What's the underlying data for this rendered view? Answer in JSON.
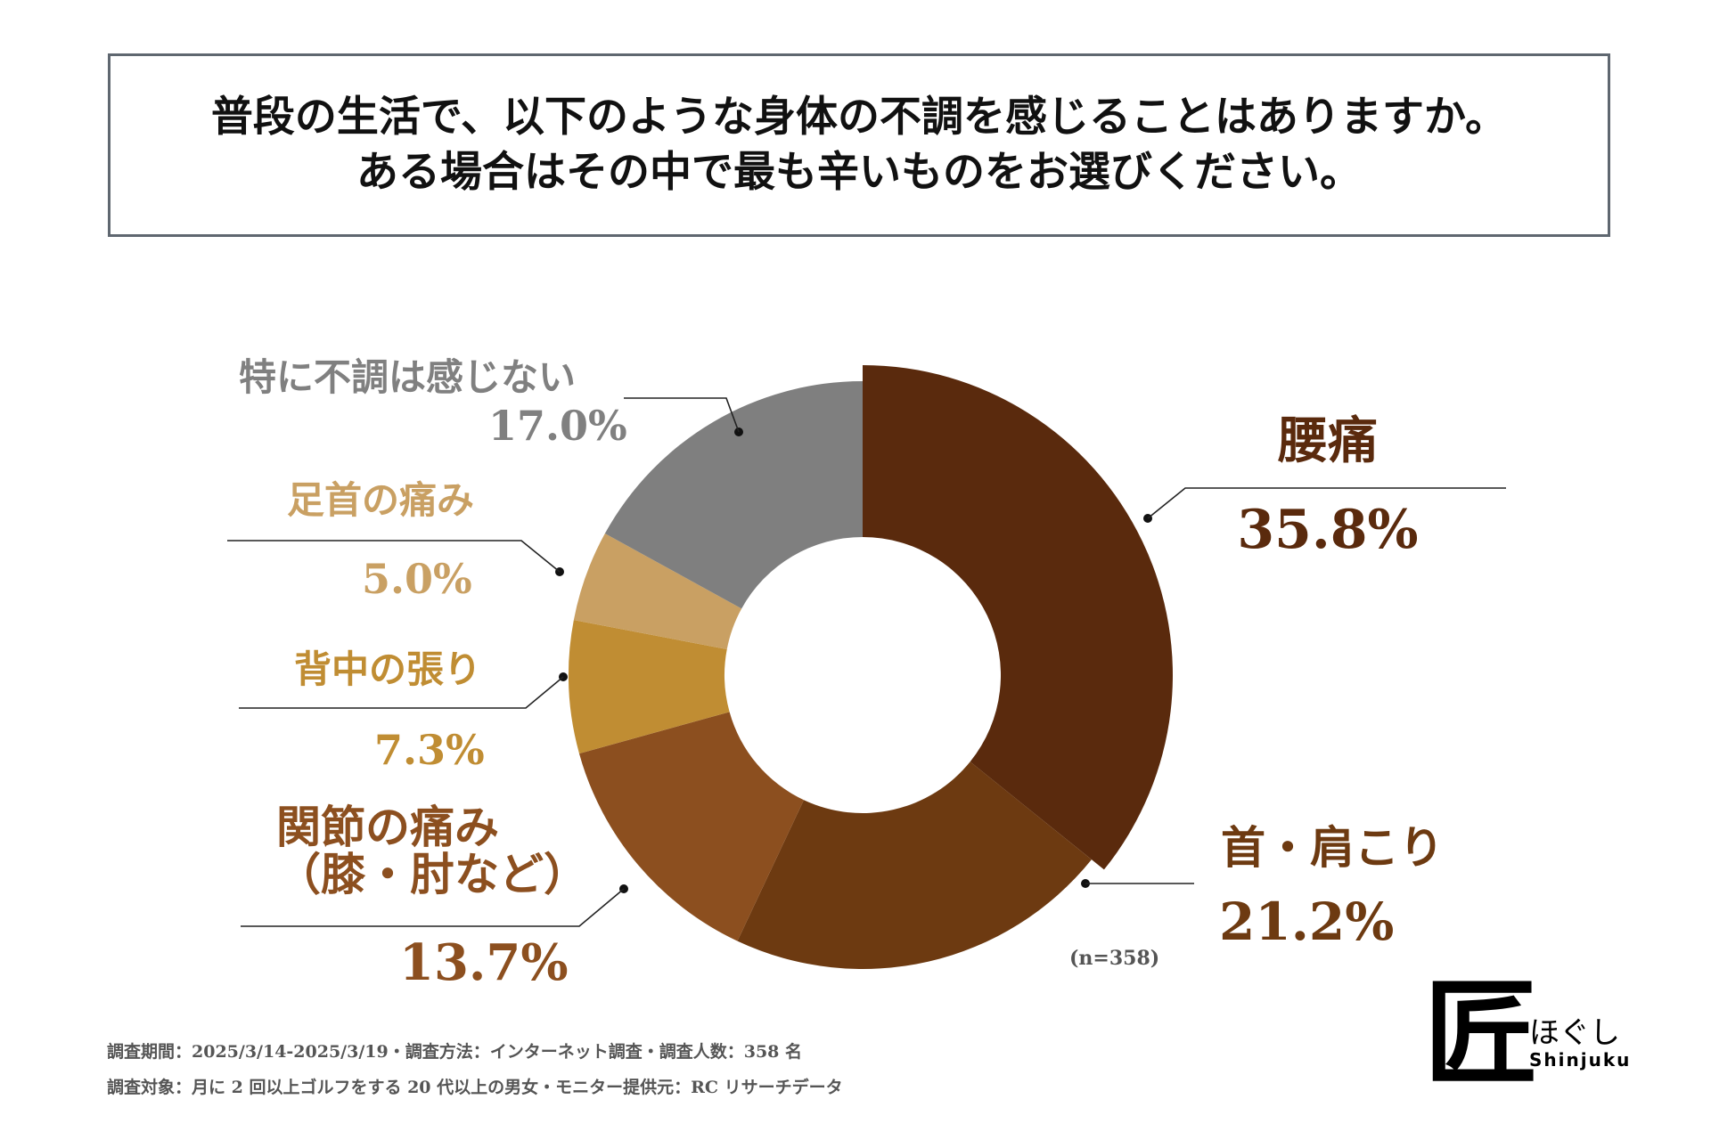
{
  "header": {
    "line1": "普段の生活で、以下のような身体の不調を感じることはありますか。",
    "line2": "ある場合はその中で最も辛いものをお選びください。"
  },
  "chart_data": {
    "type": "donut",
    "title": "普段の生活で、以下のような身体の不調を感じることはありますか。ある場合はその中で最も辛いものをお選びください。",
    "sample_size": "(n=358)",
    "unit": "%",
    "slices": [
      {
        "name": "腰痛",
        "name_line2": "",
        "value": 35.8,
        "label": "35.8%",
        "color": "#5a2a0d",
        "label_color": "#5a2a0d"
      },
      {
        "name": "首・肩こり",
        "name_line2": "",
        "value": 21.2,
        "label": "21.2%",
        "color": "#6d3a11",
        "label_color": "#6d3a11"
      },
      {
        "name": "関節の痛み",
        "name_line2": "（膝・肘など）",
        "value": 13.7,
        "label": "13.7%",
        "color": "#8c4f1f",
        "label_color": "#8c4f1f"
      },
      {
        "name": "背中の張り",
        "name_line2": "",
        "value": 7.3,
        "label": "7.3%",
        "color": "#c08d33",
        "label_color": "#c08d33"
      },
      {
        "name": "足首の痛み",
        "name_line2": "",
        "value": 5.0,
        "label": "5.0%",
        "color": "#c9a063",
        "label_color": "#c9a063"
      },
      {
        "name": "特に不調は感じない",
        "name_line2": "",
        "value": 17.0,
        "label": "17.0%",
        "color": "#7f7f7f",
        "label_color": "#808080"
      }
    ]
  },
  "footer": {
    "line1": "調査期間：2025/3/14-2025/3/19・調査方法：インターネット調査・調査人数：358 名",
    "line2": "調査対象：月に 2 回以上ゴルフをする 20 代以上の男女・モニター提供元：RC リサーチデータ"
  },
  "logo": {
    "kanji": "匠",
    "kana": "ほぐし",
    "latin": "Shinjuku"
  }
}
